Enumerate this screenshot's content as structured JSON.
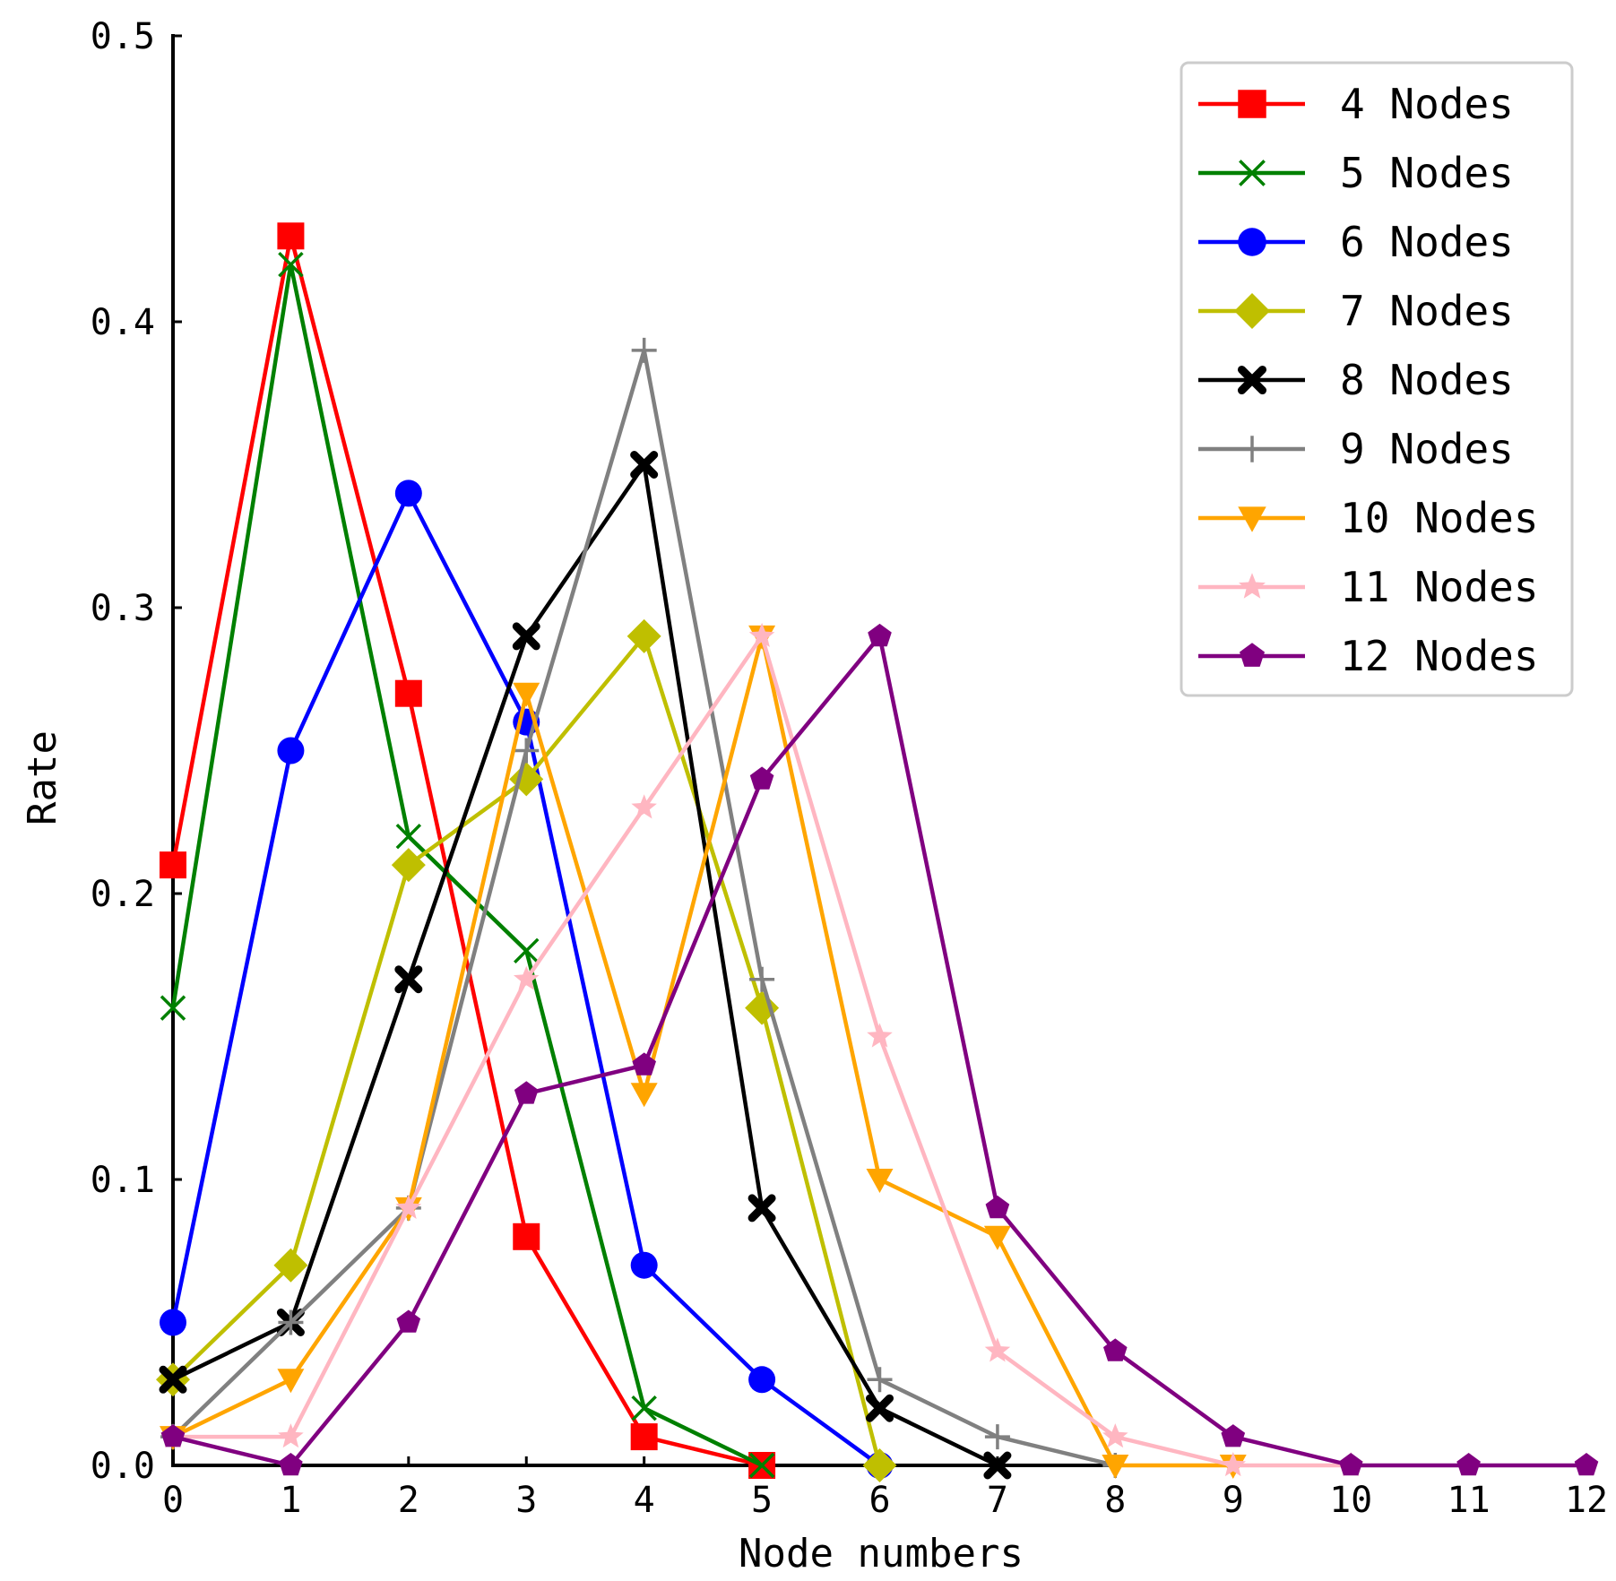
{
  "chart_data": {
    "type": "line",
    "title": "",
    "xlabel": "Node numbers",
    "ylabel": "Rate",
    "xlim": [
      0,
      12
    ],
    "ylim": [
      0,
      0.5
    ],
    "x": [
      0,
      1,
      2,
      3,
      4,
      5,
      6,
      7,
      8,
      9,
      10,
      11,
      12
    ],
    "x_ticks": [
      "0",
      "1",
      "2",
      "3",
      "4",
      "5",
      "6",
      "7",
      "8",
      "9",
      "10",
      "11",
      "12"
    ],
    "y_ticks": [
      "0.0",
      "0.1",
      "0.2",
      "0.3",
      "0.4",
      "0.5"
    ],
    "grid": false,
    "legend_position": "top-right",
    "series": [
      {
        "name": "4 Nodes",
        "color": "#ff0000",
        "marker": "square",
        "x": [
          0,
          1,
          2,
          3,
          4,
          5
        ],
        "values": [
          0.21,
          0.43,
          0.27,
          0.08,
          0.01,
          0.0
        ]
      },
      {
        "name": "5 Nodes",
        "color": "#008000",
        "marker": "x",
        "x": [
          0,
          1,
          2,
          3,
          4,
          5
        ],
        "values": [
          0.16,
          0.42,
          0.22,
          0.18,
          0.02,
          0.0
        ]
      },
      {
        "name": "6 Nodes",
        "color": "#0000ff",
        "marker": "circle",
        "x": [
          0,
          1,
          2,
          3,
          4,
          5,
          6
        ],
        "values": [
          0.05,
          0.25,
          0.34,
          0.26,
          0.07,
          0.03,
          0.0
        ]
      },
      {
        "name": "7 Nodes",
        "color": "#bfbf00",
        "marker": "diamond",
        "x": [
          0,
          1,
          2,
          3,
          4,
          5,
          6
        ],
        "values": [
          0.03,
          0.07,
          0.21,
          0.24,
          0.29,
          0.16,
          0.0
        ]
      },
      {
        "name": "8 Nodes",
        "color": "#000000",
        "marker": "thick-x",
        "x": [
          0,
          1,
          2,
          3,
          4,
          5,
          6,
          7
        ],
        "values": [
          0.03,
          0.05,
          0.17,
          0.29,
          0.35,
          0.09,
          0.02,
          0.0
        ]
      },
      {
        "name": "9 Nodes",
        "color": "#808080",
        "marker": "plus",
        "x": [
          0,
          1,
          2,
          3,
          4,
          5,
          6,
          7,
          8
        ],
        "values": [
          0.01,
          0.05,
          0.09,
          0.25,
          0.39,
          0.17,
          0.03,
          0.01,
          0.0
        ]
      },
      {
        "name": "10 Nodes",
        "color": "#ffa500",
        "marker": "triangle-down",
        "x": [
          0,
          1,
          2,
          3,
          4,
          5,
          6,
          7,
          8,
          9
        ],
        "values": [
          0.01,
          0.03,
          0.09,
          0.27,
          0.13,
          0.29,
          0.1,
          0.08,
          0.0,
          0.0
        ]
      },
      {
        "name": "11 Nodes",
        "color": "#ffb6c1",
        "marker": "star",
        "x": [
          0,
          1,
          2,
          3,
          4,
          5,
          6,
          7,
          8,
          9,
          10
        ],
        "values": [
          0.01,
          0.01,
          0.09,
          0.17,
          0.23,
          0.29,
          0.15,
          0.04,
          0.01,
          0.0,
          0.0
        ]
      },
      {
        "name": "12 Nodes",
        "color": "#800080",
        "marker": "pentagon",
        "x": [
          0,
          1,
          2,
          3,
          4,
          5,
          6,
          7,
          8,
          9,
          10,
          11,
          12
        ],
        "values": [
          0.01,
          0.0,
          0.05,
          0.13,
          0.14,
          0.24,
          0.29,
          0.09,
          0.04,
          0.01,
          0.0,
          0.0,
          0.0
        ]
      }
    ]
  }
}
